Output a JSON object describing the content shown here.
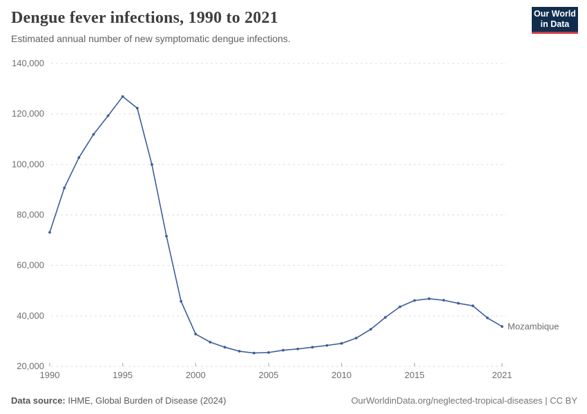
{
  "header": {
    "title": "Dengue fever infections, 1990 to 2021",
    "subtitle": "Estimated annual number of new symptomatic dengue infections."
  },
  "logo": {
    "line1": "Our World",
    "line2": "in Data",
    "bg_color": "#102d4e",
    "accent_color": "#cf3b44"
  },
  "chart_data": {
    "type": "line",
    "title": "Dengue fever infections, 1990 to 2021",
    "subtitle": "Estimated annual number of new symptomatic dengue infections.",
    "xlabel": "",
    "ylabel": "",
    "grid": true,
    "grid_style": "dashed",
    "legend_position": "end-of-line",
    "ylim": [
      20000,
      140000
    ],
    "yticks": [
      20000,
      40000,
      60000,
      80000,
      100000,
      120000,
      140000
    ],
    "xticks": [
      1990,
      1995,
      2000,
      2005,
      2010,
      2015,
      2021
    ],
    "x": [
      1990,
      1991,
      1992,
      1993,
      1994,
      1995,
      1996,
      1997,
      1998,
      1999,
      2000,
      2001,
      2002,
      2003,
      2004,
      2005,
      2006,
      2007,
      2008,
      2009,
      2010,
      2011,
      2012,
      2013,
      2014,
      2015,
      2016,
      2017,
      2018,
      2019,
      2020,
      2021
    ],
    "series": [
      {
        "name": "Mozambique",
        "color": "#3d5c9c",
        "values": [
          73100,
          90700,
          102700,
          111900,
          119300,
          126900,
          122300,
          100000,
          71600,
          45800,
          32800,
          29600,
          27600,
          26000,
          25300,
          25500,
          26400,
          26900,
          27600,
          28300,
          29100,
          31200,
          34700,
          39400,
          43600,
          46100,
          46800,
          46200,
          45000,
          44000,
          39200,
          35800
        ]
      }
    ],
    "colors": {
      "gridline": "#dedede",
      "tick_mark": "#a3a3a3",
      "tick_label": "#6e6e6e"
    }
  },
  "footer": {
    "source_label": "Data source:",
    "source_value": "IHME, Global Burden of Disease (2024)",
    "credit": "OurWorldinData.org/neglected-tropical-diseases | CC BY"
  }
}
